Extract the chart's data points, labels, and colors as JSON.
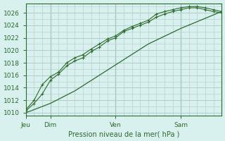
{
  "bg_color": "#d8f0ee",
  "grid_color": "#b0cccc",
  "line_color": "#2d6b2d",
  "xlabel": "Pression niveau de la mer( hPa )",
  "ylim": [
    1009.5,
    1027.5
  ],
  "yticks": [
    1010,
    1012,
    1014,
    1016,
    1018,
    1020,
    1022,
    1024,
    1026
  ],
  "day_labels": [
    "Jeu",
    "Dim",
    "Ven",
    "Sam"
  ],
  "day_positions": [
    0,
    18,
    66,
    114
  ],
  "total_hours": 144,
  "line1_x": [
    0,
    6,
    12,
    18,
    24,
    30,
    36,
    42,
    48,
    54,
    60,
    66,
    72,
    78,
    84,
    90,
    96,
    102,
    108,
    114,
    120,
    126,
    132,
    138,
    144
  ],
  "line1_y": [
    1010.5,
    1012.0,
    1014.5,
    1015.8,
    1016.5,
    1018.0,
    1018.8,
    1019.3,
    1020.2,
    1021.0,
    1021.8,
    1022.3,
    1023.2,
    1023.8,
    1024.3,
    1024.8,
    1025.8,
    1026.2,
    1026.5,
    1026.8,
    1027.0,
    1027.0,
    1026.8,
    1026.5,
    1026.2
  ],
  "line2_x": [
    0,
    6,
    12,
    18,
    24,
    30,
    36,
    42,
    48,
    54,
    60,
    66,
    72,
    78,
    84,
    90,
    96,
    102,
    108,
    114,
    120,
    126,
    132,
    138,
    144
  ],
  "line2_y": [
    1010.3,
    1011.5,
    1013.0,
    1015.2,
    1016.2,
    1017.5,
    1018.3,
    1018.8,
    1019.8,
    1020.5,
    1021.5,
    1022.0,
    1023.0,
    1023.5,
    1024.0,
    1024.5,
    1025.3,
    1025.8,
    1026.2,
    1026.5,
    1026.8,
    1026.8,
    1026.5,
    1026.2,
    1026.0
  ],
  "line3_x": [
    0,
    18,
    36,
    54,
    72,
    90,
    114,
    144
  ],
  "line3_y": [
    1010.0,
    1011.5,
    1013.5,
    1016.0,
    1018.5,
    1021.0,
    1023.5,
    1026.2
  ]
}
